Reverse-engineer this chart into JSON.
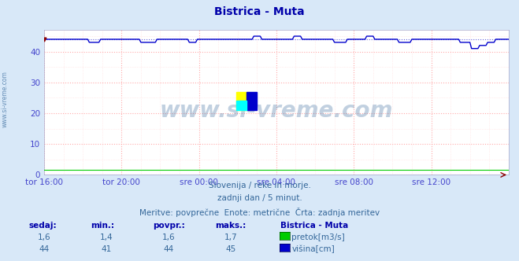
{
  "title": "Bistrica - Muta",
  "bg_color": "#d8e8f8",
  "plot_bg_color": "#ffffff",
  "grid_color_major": "#ffaaaa",
  "grid_color_minor": "#ffdddd",
  "xlabel_ticks": [
    "tor 16:00",
    "tor 20:00",
    "sre 00:00",
    "sre 04:00",
    "sre 08:00",
    "sre 12:00"
  ],
  "ylabel_ticks": [
    0,
    10,
    20,
    30,
    40
  ],
  "ylim": [
    0,
    47
  ],
  "xlim": [
    0,
    288
  ],
  "tick_positions": [
    0,
    48,
    96,
    144,
    192,
    240
  ],
  "watermark": "www.si-vreme.com",
  "subtitle1": "Slovenija / reke in morje.",
  "subtitle2": "zadnji dan / 5 minut.",
  "subtitle3": "Meritve: povprečne  Enote: metrične  Črta: zadnja meritev",
  "legend_title": "Bistrica - Muta",
  "legend_items": [
    {
      "label": "pretok[m3/s]",
      "color": "#00cc00"
    },
    {
      "label": "višina[cm]",
      "color": "#0000cc"
    }
  ],
  "stats_headers": [
    "sedaj:",
    "min.:",
    "povpr.:",
    "maks.:"
  ],
  "stats_pretok": [
    "1,6",
    "1,4",
    "1,6",
    "1,7"
  ],
  "stats_visina": [
    "44",
    "41",
    "44",
    "45"
  ],
  "axis_label_color": "#4444cc",
  "title_color": "#0000aa",
  "text_color": "#336699",
  "watermark_color": "#336699",
  "sidebar_text": "www.si-vreme.com"
}
